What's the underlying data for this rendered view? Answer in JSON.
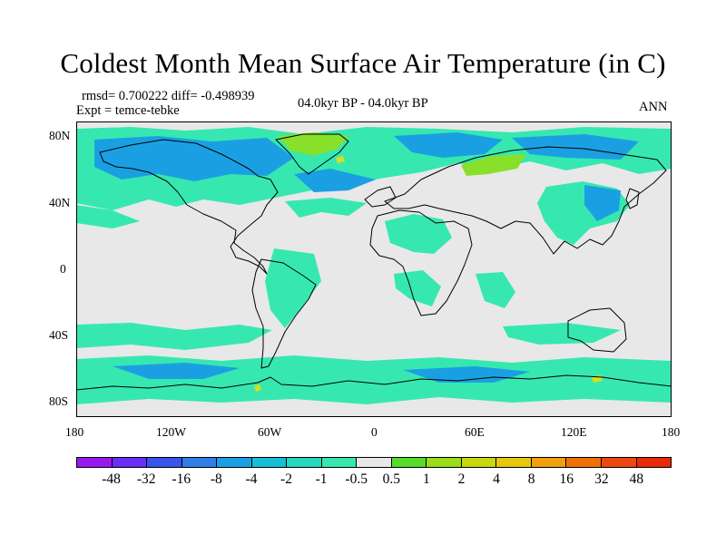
{
  "title": "Coldest Month Mean Surface Air Temperature (in C)",
  "stats": {
    "rmsd_line": "rmsd= 0.700222 diff= -0.498939",
    "expt_line": "Expt = temce-tebke"
  },
  "period": "04.0kyr BP - 04.0kyr BP",
  "season": "ANN",
  "axes": {
    "y_ticks": [
      "80N",
      "40N",
      "0",
      "40S",
      "80S"
    ],
    "x_ticks": [
      "180",
      "120W",
      "60W",
      "0",
      "60E",
      "120E",
      "180"
    ]
  },
  "colorbar": {
    "labels": [
      "-48",
      "-32",
      "-16",
      "-8",
      "-4",
      "-2",
      "-1",
      "-0.5",
      "0.5",
      "1",
      "2",
      "4",
      "8",
      "16",
      "32",
      "48"
    ],
    "colors": [
      "#9a18f0",
      "#6a2ef5",
      "#3a55ec",
      "#2f7de6",
      "#1aa0e2",
      "#16bfd6",
      "#24d9c0",
      "#36e8b0",
      "#e8e8e8",
      "#55dd2a",
      "#99de16",
      "#c8d80e",
      "#e8c80c",
      "#f0a00c",
      "#f07008",
      "#ee4810",
      "#e82a0a"
    ]
  },
  "fill_colors": {
    "background": "#e8e8e8",
    "teal": "#36e8b0",
    "blue": "#1aa0e2",
    "green": "#88e02a",
    "yellow": "#d7e018"
  }
}
